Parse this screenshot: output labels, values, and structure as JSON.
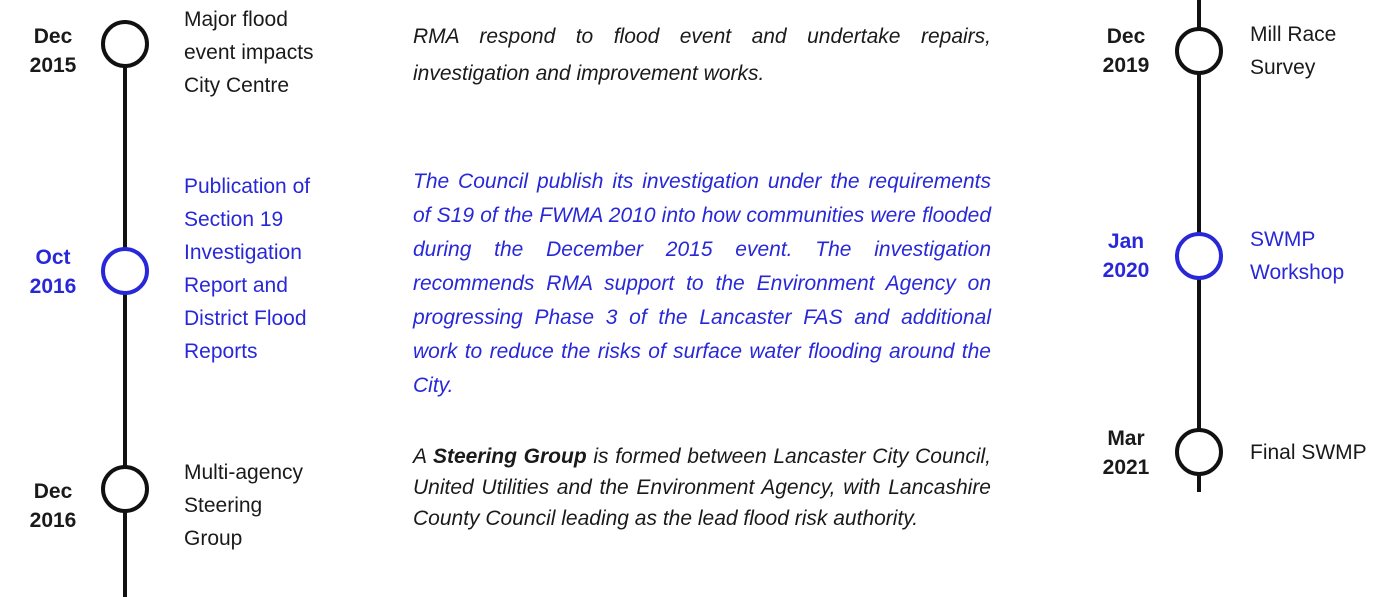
{
  "left_timeline": [
    {
      "month": "Dec",
      "year": "2015",
      "title_lines": [
        "Major flood",
        "event impacts",
        "City Centre"
      ],
      "description": "RMA respond to flood event and undertake repairs, investigation and improvement works.",
      "highlight": false
    },
    {
      "month": "Oct",
      "year": "2016",
      "title_lines": [
        "Publication of",
        "Section 19",
        "Investigation",
        "Report and",
        "District Flood",
        "Reports"
      ],
      "description": "The Council publish its investigation under the requirements of S19 of the FWMA 2010 into how communities were flooded during the December 2015 event. The investigation recommends RMA support to the Environment Agency on progressing Phase 3 of the Lancaster FAS and additional work to reduce the risks of surface water flooding around the City.",
      "highlight": true
    },
    {
      "month": "Dec",
      "year": "2016",
      "title_lines": [
        "Multi-agency",
        "Steering",
        "Group"
      ],
      "description_before": "A ",
      "description_bold": "Steering Group",
      "description_after": " is formed between Lancaster City Council, United Utilities and the Environment Agency, with Lancashire County Council leading as the lead flood risk authority.",
      "highlight": false
    }
  ],
  "right_timeline": [
    {
      "month": "Dec",
      "year": "2019",
      "title_lines": [
        "Mill Race",
        "Survey"
      ],
      "highlight": false
    },
    {
      "month": "Jan",
      "year": "2020",
      "title_lines": [
        "SWMP",
        "Workshop"
      ],
      "highlight": true
    },
    {
      "month": "Mar",
      "year": "2021",
      "title_lines": [
        "Final SWMP"
      ],
      "highlight": false
    }
  ]
}
